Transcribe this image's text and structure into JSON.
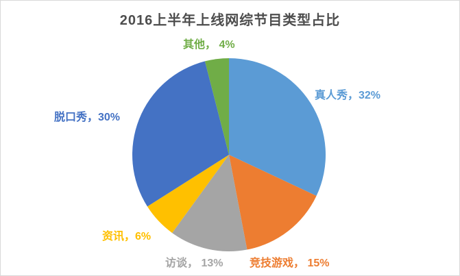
{
  "chart_data": {
    "type": "pie",
    "title": "2016上半年上线网综节目类型占比",
    "categories": [
      "真人秀",
      "竞技游戏",
      "访谈",
      "资讯",
      "脱口秀",
      "其他"
    ],
    "values": [
      32,
      15,
      13,
      6,
      30,
      4
    ],
    "unit": "%",
    "total": 100,
    "start_angle_deg": 0,
    "direction": "clockwise",
    "legend": "none",
    "label_style": "category-plus-percent-outside",
    "title_color": "#4d4d4d",
    "slices": [
      {
        "category": "真人秀",
        "value": 32,
        "color": "#5B9BD5",
        "label": "真人秀，32%"
      },
      {
        "category": "竞技游戏",
        "value": 15,
        "color": "#ED7D31",
        "label": "竞技游戏， 15%"
      },
      {
        "category": "访谈",
        "value": 13,
        "color": "#A5A5A5",
        "label": "访谈， 13%"
      },
      {
        "category": "资讯",
        "value": 6,
        "color": "#FFC000",
        "label": "资讯，6%"
      },
      {
        "category": "脱口秀",
        "value": 30,
        "color": "#4472C4",
        "label": "脱口秀，30%"
      },
      {
        "category": "其他",
        "value": 4,
        "color": "#70AD47",
        "label": "其他， 4%"
      }
    ]
  }
}
